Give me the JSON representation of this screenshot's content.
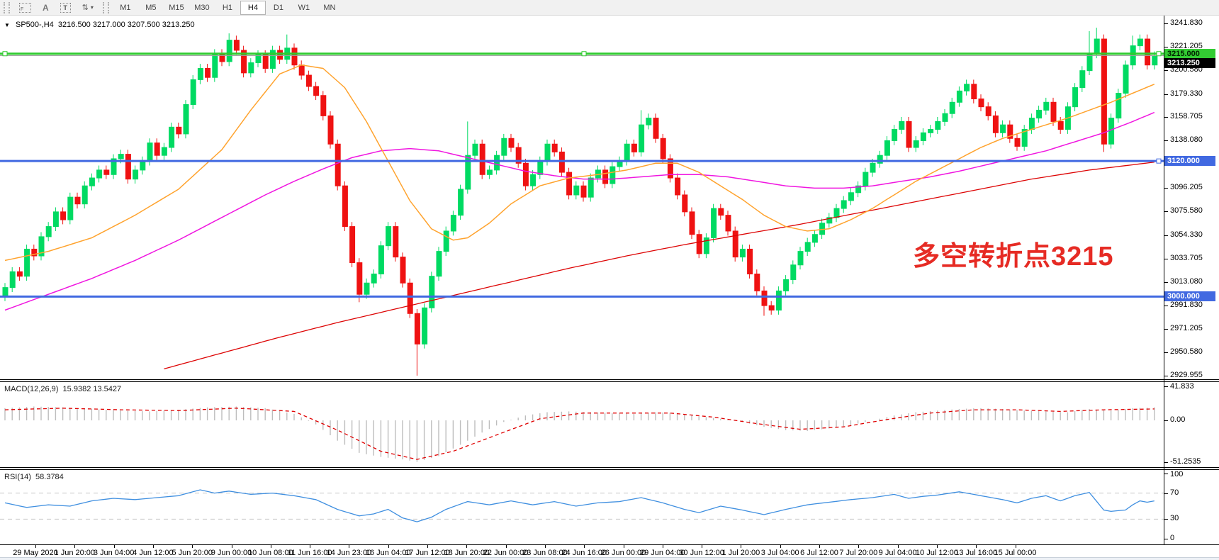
{
  "toolbar": {
    "tool_icons": [
      {
        "name": "fibonacci-tool",
        "glyph": "F"
      },
      {
        "name": "text-tool",
        "glyph": "A"
      },
      {
        "name": "text-label-tool",
        "glyph": "T"
      },
      {
        "name": "arrows-tool",
        "glyph": "⇅"
      }
    ],
    "timeframes": [
      "M1",
      "M5",
      "M15",
      "M30",
      "H1",
      "H4",
      "D1",
      "W1",
      "MN"
    ],
    "active_timeframe": "H4"
  },
  "chart": {
    "title_symbol": "SP500-,H4",
    "title_ohlc": "3216.500 3217.000 3207.500 3213.250",
    "annotation": {
      "text": "多空转折点3215",
      "color": "#e62b24"
    },
    "price_axis": [
      "3241.830",
      "3221.205",
      "3200.580",
      "3179.330",
      "3158.705",
      "3138.080",
      "3116.830",
      "3096.205",
      "3075.580",
      "3054.330",
      "3033.705",
      "3013.080",
      "2991.830",
      "2971.205",
      "2950.580",
      "2929.955"
    ],
    "levels": [
      {
        "price": 3215.0,
        "label": "3215.000",
        "color": "#2fcb2f",
        "label_bg": "#33cc33",
        "label_fg": "#002200",
        "handles": "three"
      },
      {
        "price": 3120.0,
        "label": "3120.000",
        "color": "#4169e1",
        "label_bg": "#4169e1",
        "label_fg": "#ffffff",
        "handles": "right"
      },
      {
        "price": 3000.0,
        "label": "3000.000",
        "color": "#4169e1",
        "label_bg": "#4169e1",
        "label_fg": "#ffffff",
        "handles": "none"
      }
    ],
    "current_price": {
      "value": 3213.25,
      "label": "3213.250",
      "line_color": "#9e9e9e",
      "label_bg": "#000000",
      "label_fg": "#ffffff"
    }
  },
  "chart_data": {
    "type": "candlestick+indicators",
    "symbol": "SP500-",
    "period": "H4",
    "last_bar_ohlc": {
      "open": 3216.5,
      "high": 3217.0,
      "low": 3207.5,
      "close": 3213.25
    },
    "ylim": [
      2929.955,
      3241.83
    ],
    "first_open": 3000,
    "closes": [
      3008,
      3022,
      3018,
      3042,
      3036,
      3053,
      3062,
      3075,
      3068,
      3088,
      3082,
      3098,
      3105,
      3112,
      3108,
      3122,
      3126,
      3104,
      3112,
      3120,
      3136,
      3125,
      3132,
      3150,
      3144,
      3170,
      3192,
      3202,
      3194,
      3215,
      3208,
      3227,
      3218,
      3198,
      3207,
      3214,
      3202,
      3218,
      3210,
      3220,
      3205,
      3196,
      3186,
      3178,
      3160,
      3135,
      3098,
      3062,
      3030,
      3002,
      3012,
      3020,
      3045,
      3062,
      3035,
      3012,
      2985,
      2958,
      2990,
      3018,
      3040,
      3058,
      3072,
      3095,
      3125,
      3135,
      3108,
      3112,
      3125,
      3140,
      3132,
      3118,
      3098,
      3108,
      3120,
      3135,
      3128,
      3110,
      3090,
      3098,
      3088,
      3105,
      3112,
      3100,
      3115,
      3120,
      3135,
      3128,
      3152,
      3158,
      3140,
      3122,
      3105,
      3090,
      3075,
      3055,
      3038,
      3052,
      3078,
      3072,
      3058,
      3035,
      3042,
      3020,
      3005,
      2992,
      2988,
      3005,
      3015,
      3028,
      3040,
      3048,
      3055,
      3065,
      3070,
      3078,
      3085,
      3092,
      3098,
      3110,
      3118,
      3125,
      3138,
      3148,
      3155,
      3132,
      3138,
      3145,
      3148,
      3155,
      3162,
      3172,
      3182,
      3188,
      3175,
      3168,
      3160,
      3145,
      3152,
      3140,
      3133,
      3148,
      3158,
      3165,
      3172,
      3155,
      3148,
      3168,
      3185,
      3200,
      3215,
      3228,
      3135,
      3158,
      3180,
      3205,
      3222,
      3228,
      3205,
      3213
    ],
    "wick_pad": 4,
    "wick_high_overrides": {
      "31": 3233,
      "39": 3232,
      "64": 3155,
      "88": 3165,
      "150": 3235,
      "151": 3238,
      "156": 3231
    },
    "wick_low_overrides": {
      "49": 2995,
      "57": 2930,
      "105": 2983,
      "152": 3128
    },
    "up_color": "#00da62",
    "down_color": "#ef1212",
    "ma_colors": {
      "orange": "#ffa32e",
      "magenta": "#f016e0",
      "red": "#dd0404"
    },
    "ma_orange": [
      [
        0,
        3032
      ],
      [
        6,
        3040
      ],
      [
        12,
        3052
      ],
      [
        18,
        3072
      ],
      [
        24,
        3095
      ],
      [
        30,
        3130
      ],
      [
        34,
        3165
      ],
      [
        38,
        3197
      ],
      [
        41,
        3205
      ],
      [
        44,
        3202
      ],
      [
        47,
        3185
      ],
      [
        50,
        3155
      ],
      [
        53,
        3120
      ],
      [
        56,
        3085
      ],
      [
        59,
        3060
      ],
      [
        62,
        3050
      ],
      [
        64,
        3052
      ],
      [
        67,
        3065
      ],
      [
        70,
        3082
      ],
      [
        74,
        3098
      ],
      [
        78,
        3105
      ],
      [
        82,
        3108
      ],
      [
        86,
        3112
      ],
      [
        90,
        3118
      ],
      [
        93,
        3118
      ],
      [
        96,
        3110
      ],
      [
        99,
        3098
      ],
      [
        102,
        3086
      ],
      [
        105,
        3072
      ],
      [
        108,
        3062
      ],
      [
        111,
        3058
      ],
      [
        114,
        3060
      ],
      [
        117,
        3068
      ],
      [
        120,
        3078
      ],
      [
        123,
        3090
      ],
      [
        126,
        3102
      ],
      [
        129,
        3112
      ],
      [
        132,
        3122
      ],
      [
        135,
        3132
      ],
      [
        138,
        3140
      ],
      [
        141,
        3146
      ],
      [
        144,
        3152
      ],
      [
        147,
        3158
      ],
      [
        150,
        3165
      ],
      [
        153,
        3172
      ],
      [
        156,
        3180
      ],
      [
        159,
        3188
      ]
    ],
    "ma_magenta": [
      [
        0,
        2988
      ],
      [
        6,
        3002
      ],
      [
        12,
        3016
      ],
      [
        18,
        3032
      ],
      [
        24,
        3050
      ],
      [
        30,
        3070
      ],
      [
        36,
        3090
      ],
      [
        40,
        3102
      ],
      [
        44,
        3113
      ],
      [
        48,
        3123
      ],
      [
        52,
        3129
      ],
      [
        56,
        3131
      ],
      [
        60,
        3129
      ],
      [
        64,
        3123
      ],
      [
        68,
        3117
      ],
      [
        72,
        3111
      ],
      [
        76,
        3107
      ],
      [
        80,
        3104
      ],
      [
        84,
        3104
      ],
      [
        88,
        3106
      ],
      [
        92,
        3108
      ],
      [
        96,
        3108
      ],
      [
        100,
        3106
      ],
      [
        104,
        3102
      ],
      [
        108,
        3098
      ],
      [
        112,
        3096
      ],
      [
        116,
        3096
      ],
      [
        120,
        3098
      ],
      [
        124,
        3102
      ],
      [
        128,
        3106
      ],
      [
        132,
        3111
      ],
      [
        136,
        3117
      ],
      [
        140,
        3123
      ],
      [
        144,
        3129
      ],
      [
        148,
        3137
      ],
      [
        152,
        3145
      ],
      [
        156,
        3155
      ],
      [
        159,
        3163
      ]
    ],
    "ma_red": [
      [
        22,
        2936
      ],
      [
        30,
        2950
      ],
      [
        38,
        2964
      ],
      [
        46,
        2977
      ],
      [
        54,
        2989
      ],
      [
        62,
        3001
      ],
      [
        70,
        3013
      ],
      [
        78,
        3025
      ],
      [
        86,
        3036
      ],
      [
        94,
        3046
      ],
      [
        102,
        3055
      ],
      [
        110,
        3064
      ],
      [
        118,
        3074
      ],
      [
        126,
        3084
      ],
      [
        134,
        3094
      ],
      [
        142,
        3104
      ],
      [
        150,
        3112
      ],
      [
        159,
        3119
      ]
    ],
    "macd": {
      "label": "MACD(12,26,9)",
      "values_text": "15.9382 13.5427",
      "macd_value": 15.9382,
      "signal_value": 13.5427,
      "axis": [
        "41.833",
        "0.00",
        "-51.2535"
      ],
      "ylim": [
        -51.2535,
        41.833
      ],
      "hist_color": "#bdbdbd",
      "signal_color": "#e00000",
      "hist_anchors": [
        [
          0,
          15
        ],
        [
          4,
          17
        ],
        [
          8,
          16
        ],
        [
          12,
          14
        ],
        [
          16,
          12
        ],
        [
          20,
          11
        ],
        [
          24,
          13
        ],
        [
          28,
          16
        ],
        [
          32,
          17
        ],
        [
          36,
          15
        ],
        [
          40,
          8
        ],
        [
          43,
          -5
        ],
        [
          46,
          -25
        ],
        [
          49,
          -40
        ],
        [
          52,
          -45
        ],
        [
          55,
          -48
        ],
        [
          57,
          -51
        ],
        [
          60,
          -44
        ],
        [
          63,
          -30
        ],
        [
          66,
          -15
        ],
        [
          69,
          -2
        ],
        [
          72,
          6
        ],
        [
          75,
          10
        ],
        [
          78,
          11
        ],
        [
          81,
          10
        ],
        [
          84,
          9
        ],
        [
          87,
          8
        ],
        [
          90,
          10
        ],
        [
          93,
          9
        ],
        [
          96,
          5
        ],
        [
          99,
          2
        ],
        [
          102,
          -2
        ],
        [
          105,
          -8
        ],
        [
          108,
          -12
        ],
        [
          111,
          -13
        ],
        [
          114,
          -10
        ],
        [
          117,
          -6
        ],
        [
          120,
          0
        ],
        [
          123,
          6
        ],
        [
          126,
          10
        ],
        [
          129,
          12
        ],
        [
          132,
          14
        ],
        [
          135,
          15
        ],
        [
          138,
          14
        ],
        [
          141,
          12
        ],
        [
          144,
          11
        ],
        [
          147,
          10
        ],
        [
          150,
          14
        ],
        [
          153,
          12
        ],
        [
          156,
          15
        ],
        [
          159,
          16
        ]
      ],
      "signal_anchors": [
        [
          0,
          13
        ],
        [
          8,
          15
        ],
        [
          16,
          13
        ],
        [
          24,
          12
        ],
        [
          32,
          15
        ],
        [
          40,
          11
        ],
        [
          46,
          -12
        ],
        [
          52,
          -38
        ],
        [
          57,
          -48
        ],
        [
          62,
          -38
        ],
        [
          68,
          -18
        ],
        [
          74,
          2
        ],
        [
          80,
          9
        ],
        [
          86,
          9
        ],
        [
          92,
          9
        ],
        [
          98,
          4
        ],
        [
          104,
          -4
        ],
        [
          110,
          -11
        ],
        [
          116,
          -8
        ],
        [
          122,
          1
        ],
        [
          128,
          9
        ],
        [
          134,
          13
        ],
        [
          140,
          13
        ],
        [
          146,
          11
        ],
        [
          152,
          13
        ],
        [
          159,
          14
        ]
      ]
    },
    "rsi": {
      "label": "RSI(14)",
      "value_text": "58.3784",
      "value": 58.3784,
      "axis": [
        "100",
        "70",
        "30",
        "0"
      ],
      "levels": [
        70,
        30
      ],
      "line_color": "#3f8fe0",
      "level_color": "#c8c8c8",
      "anchors": [
        [
          0,
          55
        ],
        [
          3,
          48
        ],
        [
          6,
          52
        ],
        [
          9,
          50
        ],
        [
          12,
          58
        ],
        [
          15,
          62
        ],
        [
          18,
          60
        ],
        [
          21,
          63
        ],
        [
          24,
          66
        ],
        [
          27,
          75
        ],
        [
          29,
          70
        ],
        [
          31,
          73
        ],
        [
          34,
          68
        ],
        [
          37,
          70
        ],
        [
          40,
          66
        ],
        [
          43,
          60
        ],
        [
          46,
          45
        ],
        [
          49,
          35
        ],
        [
          51,
          38
        ],
        [
          53,
          45
        ],
        [
          55,
          32
        ],
        [
          57,
          26
        ],
        [
          59,
          33
        ],
        [
          61,
          45
        ],
        [
          64,
          57
        ],
        [
          67,
          52
        ],
        [
          70,
          58
        ],
        [
          73,
          52
        ],
        [
          76,
          57
        ],
        [
          79,
          50
        ],
        [
          82,
          55
        ],
        [
          85,
          57
        ],
        [
          88,
          63
        ],
        [
          91,
          55
        ],
        [
          94,
          45
        ],
        [
          96,
          40
        ],
        [
          99,
          50
        ],
        [
          102,
          44
        ],
        [
          105,
          37
        ],
        [
          108,
          45
        ],
        [
          111,
          52
        ],
        [
          114,
          56
        ],
        [
          117,
          60
        ],
        [
          120,
          63
        ],
        [
          123,
          68
        ],
        [
          125,
          62
        ],
        [
          127,
          65
        ],
        [
          129,
          67
        ],
        [
          132,
          72
        ],
        [
          135,
          66
        ],
        [
          138,
          60
        ],
        [
          140,
          55
        ],
        [
          142,
          62
        ],
        [
          144,
          66
        ],
        [
          146,
          58
        ],
        [
          148,
          66
        ],
        [
          150,
          71
        ],
        [
          152,
          44
        ],
        [
          153,
          42
        ],
        [
          155,
          44
        ],
        [
          156,
          52
        ],
        [
          157,
          58
        ],
        [
          158,
          56
        ],
        [
          159,
          58
        ]
      ]
    },
    "x_axis_labels": [
      "29 May 2020",
      "1 Jun 20:00",
      "3 Jun 04:00",
      "4 Jun 12:00",
      "5 Jun 20:00",
      "9 Jun 00:00",
      "10 Jun 08:00",
      "11 Jun 16:00",
      "14 Jun 23:00",
      "16 Jun 04:00",
      "17 Jun 12:00",
      "18 Jun 20:00",
      "22 Jun 00:00",
      "23 Jun 08:00",
      "24 Jun 16:00",
      "26 Jun 00:00",
      "29 Jun 04:00",
      "30 Jun 12:00",
      "1 Jul 20:00",
      "3 Jul 04:00",
      "6 Jul 12:00",
      "7 Jul 20:00",
      "9 Jul 04:00",
      "10 Jul 12:00",
      "13 Jul 16:00",
      "15 Jul 00:00"
    ]
  }
}
